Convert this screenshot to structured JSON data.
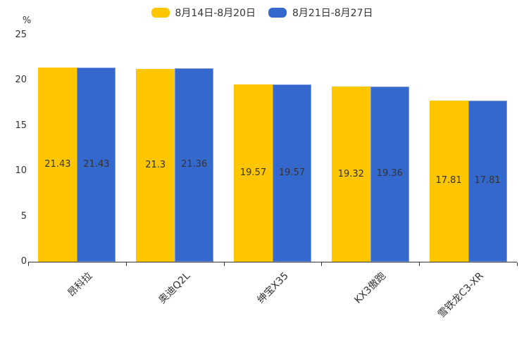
{
  "chart_data": {
    "type": "bar",
    "title": "",
    "ylabel": "%",
    "xlabel": "",
    "categories": [
      "昂科拉",
      "奥迪Q2L",
      "绅宝X35",
      "KX3傲跑",
      "雪铁龙C3-XR"
    ],
    "series": [
      {
        "name": "8月14日-8月20日",
        "color": "#FEC600",
        "border_color": "",
        "values": [
          21.43,
          21.3,
          19.57,
          19.32,
          17.81
        ]
      },
      {
        "name": "8月21日-8月27日",
        "color": "#3568CD",
        "border_color": "#7F99DF",
        "values": [
          21.43,
          21.36,
          19.57,
          19.36,
          17.81
        ]
      }
    ],
    "ylim": [
      0,
      25
    ],
    "yticks": [
      0,
      5,
      10,
      15,
      20,
      25
    ],
    "grid": false,
    "legend_position": "top",
    "value_labels": "inside-middle",
    "x_label_rotation": -45
  },
  "colors": {
    "axis": "#333333",
    "text": "#333333",
    "background": "#ffffff"
  }
}
